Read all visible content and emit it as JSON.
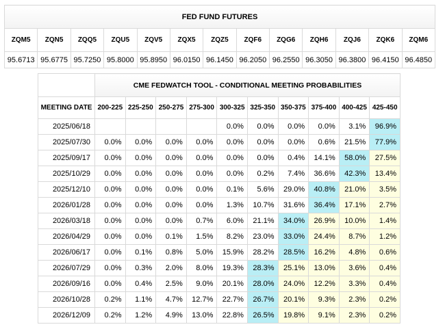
{
  "futures": {
    "title": "FED FUND FUTURES",
    "contracts": [
      {
        "code": "ZQM5",
        "price": "95.6713"
      },
      {
        "code": "ZQN5",
        "price": "95.6775"
      },
      {
        "code": "ZQQ5",
        "price": "95.7250"
      },
      {
        "code": "ZQU5",
        "price": "95.8000"
      },
      {
        "code": "ZQV5",
        "price": "95.8950"
      },
      {
        "code": "ZQX5",
        "price": "96.0150"
      },
      {
        "code": "ZQZ5",
        "price": "96.1450"
      },
      {
        "code": "ZQF6",
        "price": "96.2050"
      },
      {
        "code": "ZQG6",
        "price": "96.2550"
      },
      {
        "code": "ZQH6",
        "price": "96.3050"
      },
      {
        "code": "ZQJ6",
        "price": "96.3800"
      },
      {
        "code": "ZQK6",
        "price": "96.4150"
      },
      {
        "code": "ZQM6",
        "price": "96.4850"
      }
    ]
  },
  "fedwatch": {
    "title": "CME FEDWATCH TOOL - CONDITIONAL MEETING PROBABILITIES",
    "date_header": "MEETING DATE",
    "ranges": [
      "200-225",
      "225-250",
      "250-275",
      "275-300",
      "300-325",
      "325-350",
      "350-375",
      "375-400",
      "400-425",
      "425-450"
    ],
    "colors": {
      "highlight": "#b9eef5",
      "shade": "#fefee0"
    },
    "rows": [
      {
        "date": "2025/06/18",
        "values": [
          "",
          "",
          "",
          "",
          "0.0%",
          "0.0%",
          "0.0%",
          "0.0%",
          "3.1%",
          "96.9%"
        ],
        "highlight": 9,
        "shade": []
      },
      {
        "date": "2025/07/30",
        "values": [
          "0.0%",
          "0.0%",
          "0.0%",
          "0.0%",
          "0.0%",
          "0.0%",
          "0.0%",
          "0.6%",
          "21.5%",
          "77.9%"
        ],
        "highlight": 9,
        "shade": []
      },
      {
        "date": "2025/09/17",
        "values": [
          "0.0%",
          "0.0%",
          "0.0%",
          "0.0%",
          "0.0%",
          "0.0%",
          "0.4%",
          "14.1%",
          "58.0%",
          "27.5%"
        ],
        "highlight": 8,
        "shade": [
          9
        ]
      },
      {
        "date": "2025/10/29",
        "values": [
          "0.0%",
          "0.0%",
          "0.0%",
          "0.0%",
          "0.0%",
          "0.2%",
          "7.4%",
          "36.6%",
          "42.3%",
          "13.4%"
        ],
        "highlight": 8,
        "shade": [
          9
        ]
      },
      {
        "date": "2025/12/10",
        "values": [
          "0.0%",
          "0.0%",
          "0.0%",
          "0.0%",
          "0.1%",
          "5.6%",
          "29.0%",
          "40.8%",
          "21.0%",
          "3.5%"
        ],
        "highlight": 7,
        "shade": [
          8,
          9
        ]
      },
      {
        "date": "2026/01/28",
        "values": [
          "0.0%",
          "0.0%",
          "0.0%",
          "0.0%",
          "1.3%",
          "10.7%",
          "31.6%",
          "36.4%",
          "17.1%",
          "2.7%"
        ],
        "highlight": 7,
        "shade": [
          8,
          9
        ]
      },
      {
        "date": "2026/03/18",
        "values": [
          "0.0%",
          "0.0%",
          "0.0%",
          "0.7%",
          "6.0%",
          "21.1%",
          "34.0%",
          "26.9%",
          "10.0%",
          "1.4%"
        ],
        "highlight": 6,
        "shade": [
          7,
          8,
          9
        ]
      },
      {
        "date": "2026/04/29",
        "values": [
          "0.0%",
          "0.0%",
          "0.1%",
          "1.5%",
          "8.2%",
          "23.0%",
          "33.0%",
          "24.4%",
          "8.7%",
          "1.2%"
        ],
        "highlight": 6,
        "shade": [
          7,
          8,
          9
        ]
      },
      {
        "date": "2026/06/17",
        "values": [
          "0.0%",
          "0.1%",
          "0.8%",
          "5.0%",
          "15.9%",
          "28.2%",
          "28.5%",
          "16.2%",
          "4.8%",
          "0.6%"
        ],
        "highlight": 6,
        "shade": [
          7,
          8,
          9
        ]
      },
      {
        "date": "2026/07/29",
        "values": [
          "0.0%",
          "0.3%",
          "2.0%",
          "8.0%",
          "19.3%",
          "28.3%",
          "25.1%",
          "13.0%",
          "3.6%",
          "0.4%"
        ],
        "highlight": 5,
        "shade": [
          6,
          7,
          8,
          9
        ]
      },
      {
        "date": "2026/09/16",
        "values": [
          "0.0%",
          "0.4%",
          "2.5%",
          "9.0%",
          "20.1%",
          "28.0%",
          "24.0%",
          "12.2%",
          "3.3%",
          "0.4%"
        ],
        "highlight": 5,
        "shade": [
          6,
          7,
          8,
          9
        ]
      },
      {
        "date": "2026/10/28",
        "values": [
          "0.2%",
          "1.1%",
          "4.7%",
          "12.7%",
          "22.7%",
          "26.7%",
          "20.1%",
          "9.3%",
          "2.3%",
          "0.2%"
        ],
        "highlight": 5,
        "shade": [
          6,
          7,
          8,
          9
        ]
      },
      {
        "date": "2026/12/09",
        "values": [
          "0.2%",
          "1.2%",
          "4.9%",
          "13.0%",
          "22.8%",
          "26.5%",
          "19.8%",
          "9.1%",
          "2.3%",
          "0.2%"
        ],
        "highlight": 5,
        "shade": [
          6,
          7,
          8,
          9
        ]
      }
    ]
  }
}
